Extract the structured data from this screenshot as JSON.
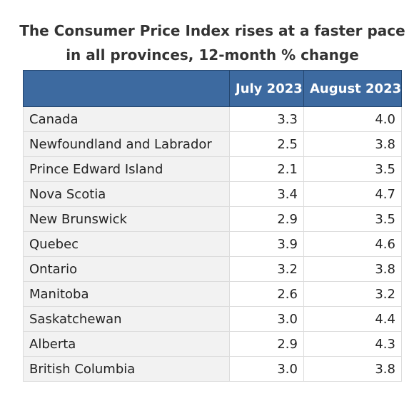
{
  "chart_data": {
    "type": "table",
    "title_lines": [
      "The Consumer Price Index rises at a faster pace",
      "in all provinces, 12-month % change"
    ],
    "columns": [
      "",
      "July 2023",
      "August 2023"
    ],
    "rows": [
      {
        "region": "Canada",
        "values": [
          "3.3",
          "4.0"
        ]
      },
      {
        "region": "Newfoundland and Labrador",
        "values": [
          "2.5",
          "3.8"
        ]
      },
      {
        "region": "Prince Edward Island",
        "values": [
          "2.1",
          "3.5"
        ]
      },
      {
        "region": "Nova Scotia",
        "values": [
          "3.4",
          "4.7"
        ]
      },
      {
        "region": "New Brunswick",
        "values": [
          "2.9",
          "3.5"
        ]
      },
      {
        "region": "Quebec",
        "values": [
          "3.9",
          "4.6"
        ]
      },
      {
        "region": "Ontario",
        "values": [
          "3.2",
          "3.8"
        ]
      },
      {
        "region": "Manitoba",
        "values": [
          "2.6",
          "3.2"
        ]
      },
      {
        "region": "Saskatchewan",
        "values": [
          "3.0",
          "4.4"
        ]
      },
      {
        "region": "Alberta",
        "values": [
          "2.9",
          "4.3"
        ]
      },
      {
        "region": "British Columbia",
        "values": [
          "3.0",
          "3.8"
        ]
      }
    ],
    "colors": {
      "header_background": "#3d6aa0",
      "header_text": "#ffffff",
      "label_cell_background": "#f2f2f2",
      "border": "#dcdcdc"
    }
  }
}
